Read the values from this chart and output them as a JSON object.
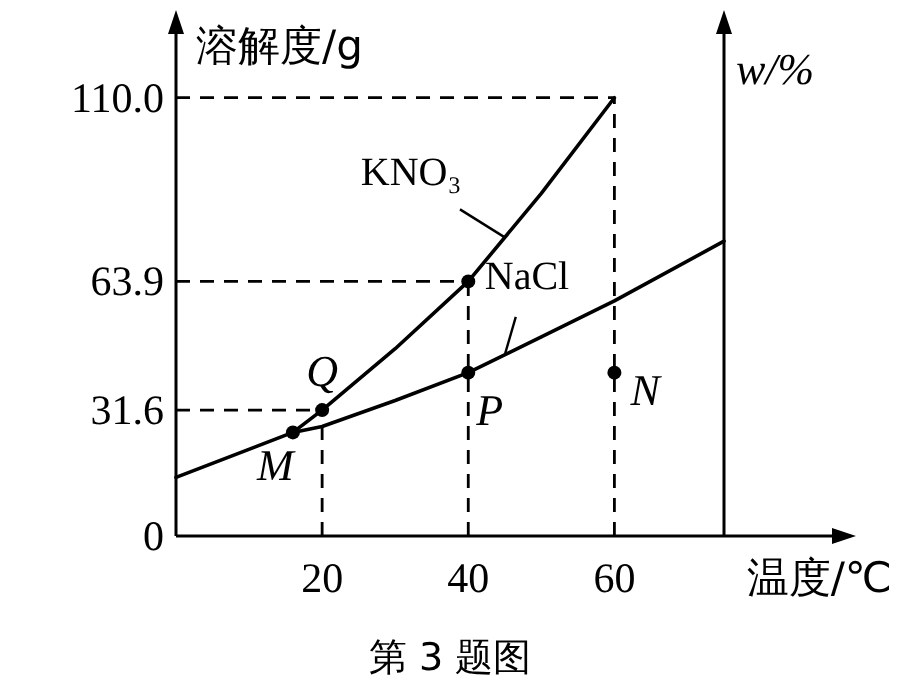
{
  "chart_data": {
    "type": "line",
    "xlabel": "温度/℃",
    "ylabel": "溶解度/g",
    "y2label": "w/%",
    "xlim": [
      0,
      75
    ],
    "ylim": [
      0,
      128
    ],
    "xticks": [
      20,
      40,
      60
    ],
    "yticks": [
      0,
      {
        "value": 31.6,
        "label": "31.6"
      },
      {
        "value": 63.9,
        "label": "63.9"
      },
      {
        "value": 110,
        "label": "110.0"
      }
    ],
    "grid": false,
    "marker": "none",
    "line_style": "solid",
    "series": [
      {
        "name": "KNO₃",
        "color": "#000000",
        "x": [
          16,
          20,
          30,
          40,
          50,
          60
        ],
        "values": [
          26,
          31.6,
          47,
          63.9,
          86,
          110
        ]
      },
      {
        "name": "NaCl",
        "color": "#000000",
        "x": [
          0,
          16,
          20,
          30,
          40,
          50,
          60,
          75
        ],
        "values": [
          14.7,
          26,
          27.5,
          34,
          41,
          50,
          59,
          74
        ]
      },
      {
        "type": "scatter",
        "marker": "circle",
        "color": "#000000",
        "x": [
          16,
          20,
          40,
          40,
          60
        ],
        "values": [
          26,
          31.6,
          41,
          63.9,
          41
        ]
      }
    ],
    "ref_lines": [
      {
        "axis": "x",
        "value": 20,
        "line_style": "dashed"
      },
      {
        "axis": "x",
        "value": 40,
        "line_style": "dashed"
      },
      {
        "axis": "x",
        "value": 60,
        "line_style": "dashed"
      },
      {
        "axis": "y",
        "value": 31.6,
        "line_style": "dashed"
      },
      {
        "axis": "y",
        "value": 63.9,
        "line_style": "dashed"
      },
      {
        "axis": "y",
        "value": 110,
        "line_style": "dashed"
      }
    ],
    "annotations": [
      {
        "text": "M",
        "x": 16,
        "y": 26
      },
      {
        "text": "Q",
        "x": 20,
        "y": 31.6
      },
      {
        "text": "P",
        "x": 40,
        "y": 41
      },
      {
        "text": "N",
        "x": 60,
        "y": 41
      },
      "第 3 题图"
    ]
  }
}
